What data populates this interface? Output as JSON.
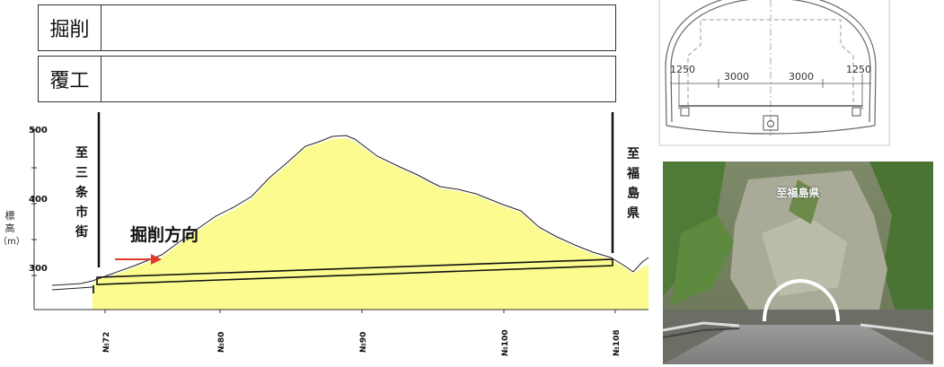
{
  "progress": {
    "rows": [
      {
        "label": "掘削",
        "value": 0
      },
      {
        "label": "覆工",
        "value": 0
      }
    ]
  },
  "profile": {
    "y_label": [
      "標",
      "高",
      "（m）"
    ],
    "y_ticks": [
      "500",
      "400",
      "300"
    ],
    "x_ticks": [
      "№72",
      "№80",
      "№90",
      "№100",
      "№108"
    ],
    "left_destination": [
      "至",
      "三",
      "条",
      "市",
      "街"
    ],
    "right_destination": [
      "至",
      "福",
      "島",
      "県"
    ],
    "direction_label": "掘削方向"
  },
  "cross_section": {
    "dimensions": [
      "1250",
      "3000",
      "3000",
      "1250"
    ]
  },
  "photo": {
    "caption": "至福島県"
  },
  "colors": {
    "ground_fill": "#fbfb8f",
    "arrow": "#e53a2a",
    "line": "#111111"
  }
}
